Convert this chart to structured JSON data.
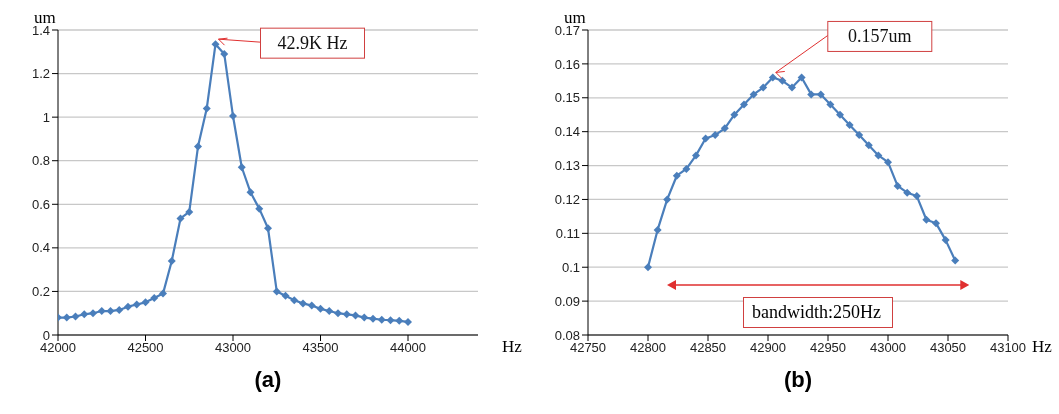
{
  "chart_data": [
    {
      "type": "line",
      "title": "(a)",
      "xlabel": "Hz",
      "ylabel": "um",
      "xlim": [
        42000,
        44400
      ],
      "xticks": [
        42000,
        42500,
        43000,
        43500,
        44000
      ],
      "ylim": [
        0,
        1.4
      ],
      "yticks": [
        0,
        0.2,
        0.4,
        0.6,
        0.8,
        1,
        1.2,
        1.4
      ],
      "grid": "y",
      "marker": "diamond",
      "line_style": "solid",
      "x": [
        42000,
        42050,
        42100,
        42150,
        42200,
        42250,
        42300,
        42350,
        42400,
        42450,
        42500,
        42550,
        42600,
        42650,
        42700,
        42750,
        42800,
        42850,
        42900,
        42950,
        43000,
        43050,
        43100,
        43150,
        43200,
        43250,
        43300,
        43350,
        43400,
        43450,
        43500,
        43550,
        43600,
        43650,
        43700,
        43750,
        43800,
        43850,
        43900,
        43950,
        44000
      ],
      "series": [
        {
          "color": "#4a7ebb",
          "values": [
            0.08,
            0.08,
            0.085,
            0.095,
            0.1,
            0.11,
            0.11,
            0.115,
            0.13,
            0.14,
            0.15,
            0.17,
            0.19,
            0.34,
            0.535,
            0.565,
            0.865,
            1.04,
            1.335,
            1.29,
            1.005,
            0.77,
            0.655,
            0.58,
            0.49,
            0.2,
            0.18,
            0.16,
            0.145,
            0.135,
            0.12,
            0.11,
            0.1,
            0.095,
            0.09,
            0.08,
            0.075,
            0.07,
            0.068,
            0.065,
            0.06
          ]
        }
      ],
      "annotations": [
        {
          "text": "42.9K Hz",
          "x": 42900,
          "y": 1.335
        }
      ]
    },
    {
      "type": "line",
      "title": "(b)",
      "xlabel": "Hz",
      "ylabel": "um",
      "xlim": [
        42750,
        43100
      ],
      "xticks": [
        42750,
        42800,
        42850,
        42900,
        42950,
        43000,
        43050,
        43100
      ],
      "ylim": [
        0.08,
        0.17
      ],
      "yticks": [
        0.08,
        0.09,
        0.1,
        0.11,
        0.12,
        0.13,
        0.14,
        0.15,
        0.16,
        0.17
      ],
      "grid": "y",
      "marker": "diamond",
      "line_style": "solid",
      "x": [
        42800,
        42808,
        42816,
        42824,
        42832,
        42840,
        42848,
        42856,
        42864,
        42872,
        42880,
        42888,
        42896,
        42904,
        42912,
        42920,
        42928,
        42936,
        42944,
        42952,
        42960,
        42968,
        42976,
        42984,
        42992,
        43000,
        43008,
        43016,
        43024,
        43032,
        43040,
        43048,
        43056
      ],
      "series": [
        {
          "color": "#4a7ebb",
          "values": [
            0.1,
            0.111,
            0.12,
            0.127,
            0.129,
            0.133,
            0.138,
            0.139,
            0.141,
            0.145,
            0.148,
            0.151,
            0.153,
            0.156,
            0.155,
            0.153,
            0.156,
            0.151,
            0.151,
            0.148,
            0.145,
            0.142,
            0.139,
            0.136,
            0.133,
            0.131,
            0.124,
            0.122,
            0.121,
            0.114,
            0.113,
            0.108,
            0.102
          ]
        }
      ],
      "annotations": [
        {
          "text": "0.157um",
          "x": 42904,
          "y": 0.156
        },
        "bandwidth:250Hz"
      ]
    }
  ]
}
